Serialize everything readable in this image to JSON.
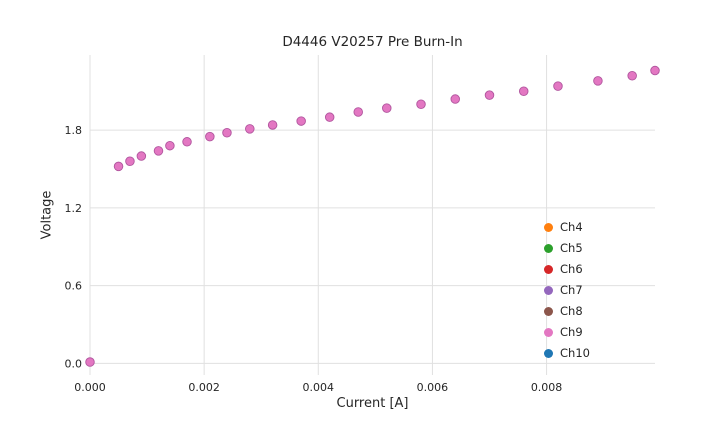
{
  "chart_data": {
    "type": "scatter",
    "title": "D4446 V20257 Pre Burn-In",
    "xlabel": "Current [A]",
    "ylabel": "Voltage",
    "xlim": [
      0,
      0.0099
    ],
    "ylim": [
      -0.09,
      2.38
    ],
    "xticks": [
      0,
      0.002,
      0.004,
      0.006,
      0.008
    ],
    "xtick_labels": [
      "0.000",
      "0.002",
      "0.004",
      "0.006",
      "0.008"
    ],
    "yticks": [
      0,
      0.6,
      1.2,
      1.8
    ],
    "ytick_labels": [
      "0.0",
      "0.6",
      "1.2",
      "1.8"
    ],
    "grid": true,
    "grid_color": "#e0e0e0",
    "background": "#ffffff",
    "legend_position": "lower right",
    "marker_edge_color": "#b1559e",
    "series": [
      {
        "name": "Ch4",
        "color": "#ff7f0e",
        "x": [],
        "y": []
      },
      {
        "name": "Ch5",
        "color": "#2ca02c",
        "x": [],
        "y": []
      },
      {
        "name": "Ch6",
        "color": "#d62728",
        "x": [],
        "y": []
      },
      {
        "name": "Ch7",
        "color": "#9467bd",
        "x": [],
        "y": []
      },
      {
        "name": "Ch8",
        "color": "#8c564b",
        "x": [],
        "y": []
      },
      {
        "name": "Ch9",
        "color": "#e377c2",
        "x": [
          0.0,
          0.0005,
          0.0007,
          0.0009,
          0.0012,
          0.0014,
          0.0017,
          0.0021,
          0.0024,
          0.0028,
          0.0032,
          0.0037,
          0.0042,
          0.0047,
          0.0052,
          0.0058,
          0.0064,
          0.007,
          0.0076,
          0.0082,
          0.0089,
          0.0095,
          0.0099
        ],
        "y": [
          0.01,
          1.52,
          1.56,
          1.6,
          1.64,
          1.68,
          1.71,
          1.75,
          1.78,
          1.81,
          1.84,
          1.87,
          1.9,
          1.94,
          1.97,
          2.0,
          2.04,
          2.07,
          2.1,
          2.14,
          2.18,
          2.22,
          2.26
        ]
      },
      {
        "name": "Ch10",
        "color": "#1f77b4",
        "x": [],
        "y": []
      }
    ]
  }
}
